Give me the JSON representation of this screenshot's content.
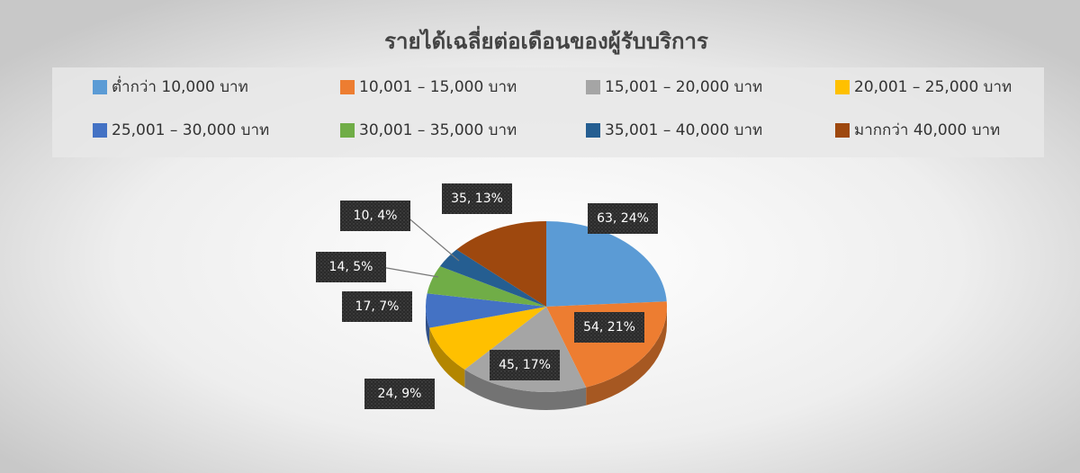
{
  "chart_data": {
    "type": "pie3d",
    "title": "รายได้เฉลี่ยต่อเดือนของผู้รับบริการ",
    "categories": [
      "ต่ำกว่า 10,000 บาท",
      "10,001 – 15,000 บาท",
      "15,001 – 20,000 บาท",
      "20,001 – 25,000 บาท",
      "25,001 – 30,000 บาท",
      "30,001 – 35,000 บาท",
      "35,001 – 40,000 บาท",
      "มากกว่า 40,000 บาท"
    ],
    "values": [
      63,
      54,
      45,
      24,
      17,
      14,
      10,
      35
    ],
    "value_labels": [
      "63, 24%",
      "54, 21%",
      "45, 17%",
      "24, 9%",
      "17, 7%",
      "14, 5%",
      "10, 4%",
      "35, 13%"
    ],
    "colors": [
      "#5b9bd5",
      "#ed7d31",
      "#a5a5a5",
      "#ffc000",
      "#4472c4",
      "#70ad47",
      "#255e91",
      "#9e480e"
    ],
    "legend": "top"
  }
}
